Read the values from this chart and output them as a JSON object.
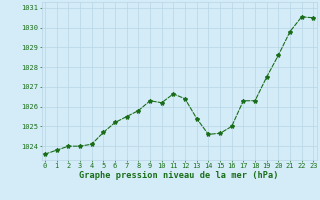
{
  "x": [
    0,
    1,
    2,
    3,
    4,
    5,
    6,
    7,
    8,
    9,
    10,
    11,
    12,
    13,
    14,
    15,
    16,
    17,
    18,
    19,
    20,
    21,
    22,
    23
  ],
  "y": [
    1023.6,
    1023.8,
    1024.0,
    1024.0,
    1024.1,
    1024.7,
    1025.2,
    1025.5,
    1025.8,
    1026.3,
    1026.2,
    1026.65,
    1026.4,
    1025.4,
    1024.6,
    1024.65,
    1025.0,
    1026.3,
    1026.3,
    1027.5,
    1028.6,
    1029.8,
    1030.55,
    1030.5
  ],
  "line_color": "#1a6e1a",
  "marker": "*",
  "marker_size": 3,
  "bg_color": "#d4ecf7",
  "grid_color": "#b8d4e4",
  "xlabel": "Graphe pression niveau de la mer (hPa)",
  "xlabel_color": "#1a6e1a",
  "tick_label_color": "#1a6e1a",
  "ylim": [
    1023.3,
    1031.3
  ],
  "yticks": [
    1024,
    1025,
    1026,
    1027,
    1028,
    1029,
    1030,
    1031
  ],
  "xticks": [
    0,
    1,
    2,
    3,
    4,
    5,
    6,
    7,
    8,
    9,
    10,
    11,
    12,
    13,
    14,
    15,
    16,
    17,
    18,
    19,
    20,
    21,
    22,
    23
  ],
  "xlim": [
    -0.3,
    23.3
  ]
}
